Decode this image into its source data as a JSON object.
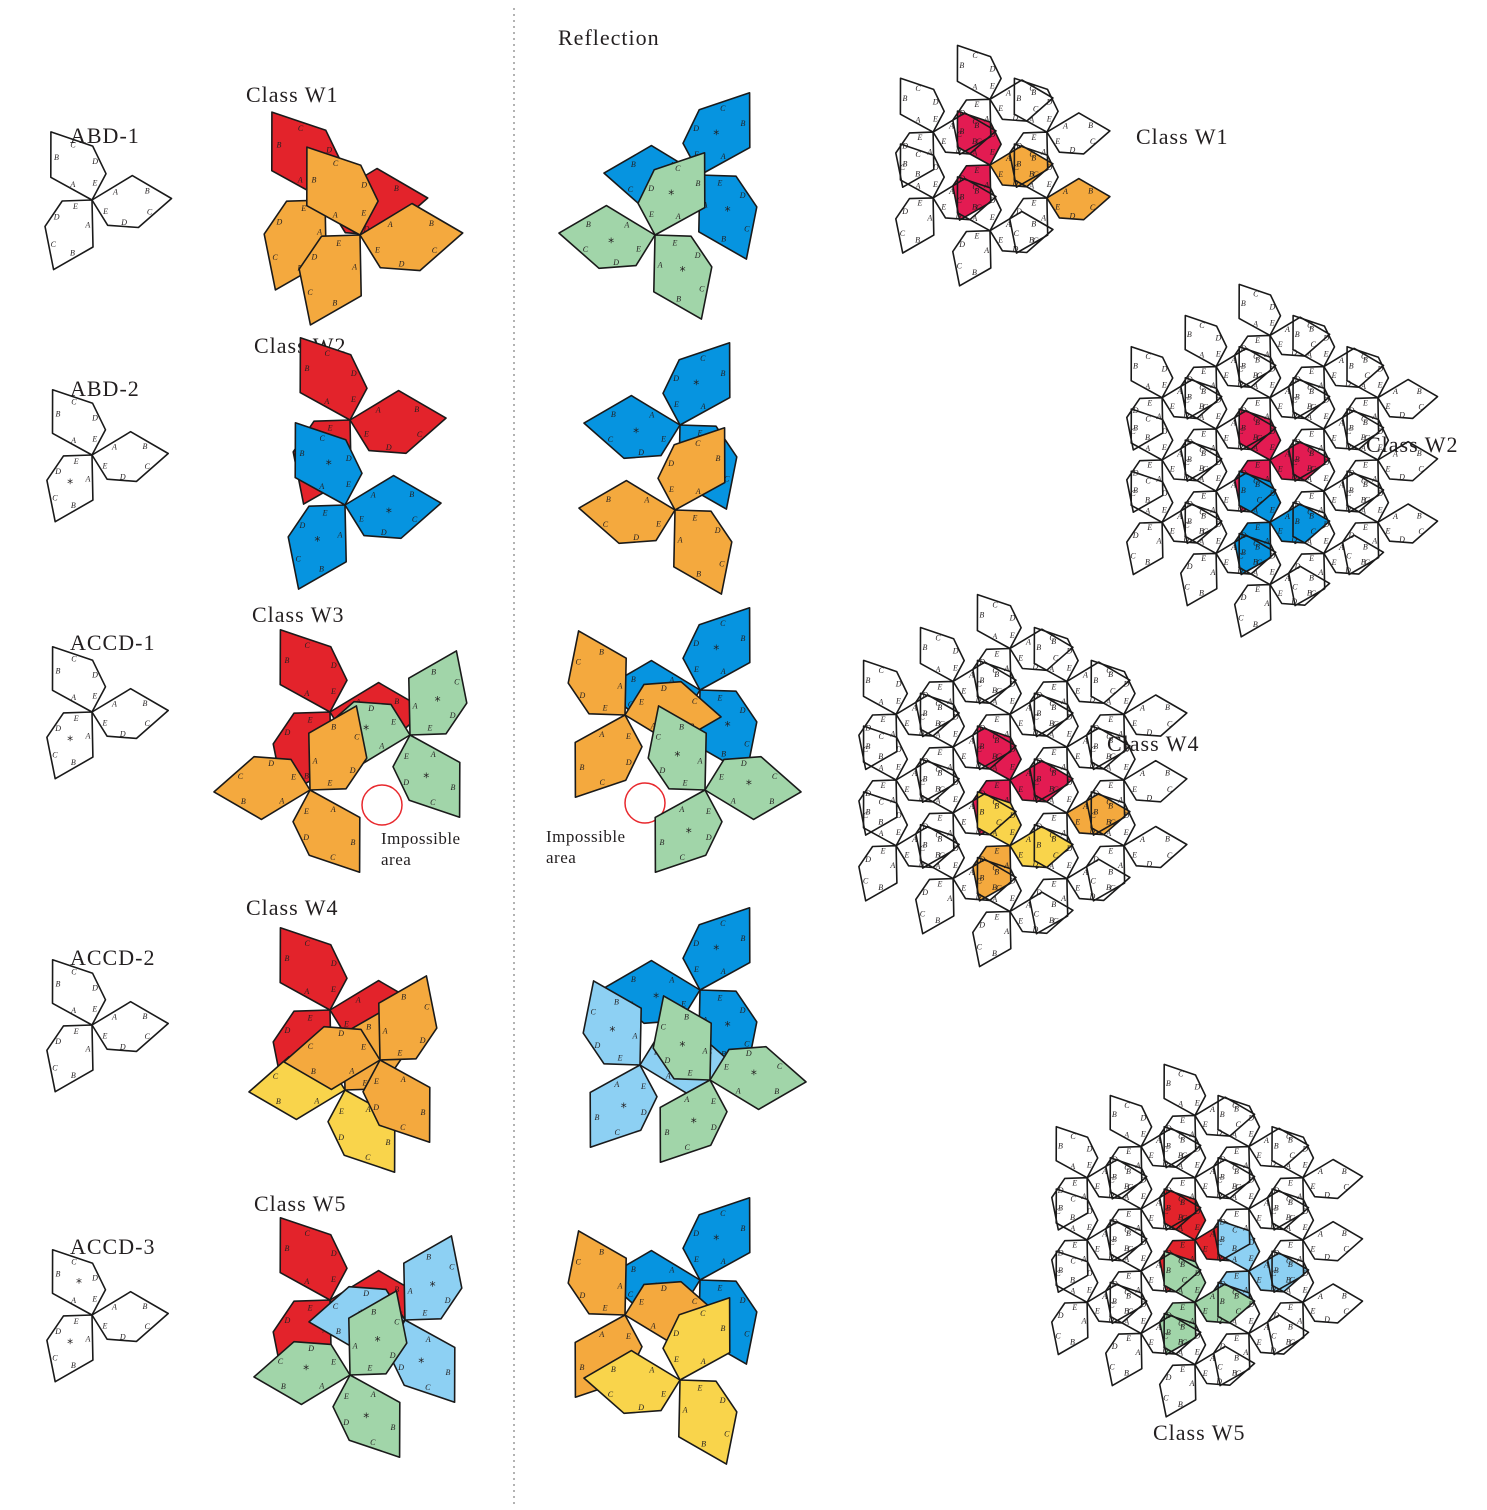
{
  "header": {
    "reflection_label": "Reflection"
  },
  "rows": [
    {
      "proto": "ABD-1",
      "cls": "Class W1"
    },
    {
      "proto": "ABD-2",
      "cls": "Class W2"
    },
    {
      "proto": "ACCD-1",
      "cls": "Class W3"
    },
    {
      "proto": "ACCD-2",
      "cls": "Class W4"
    },
    {
      "proto": "ACCD-3",
      "cls": "Class W5"
    }
  ],
  "impossible": {
    "line1": "Impossible",
    "line2": "area"
  },
  "patches": {
    "w1": "Class W1",
    "w2": "Class W2",
    "w4": "Class W4",
    "w5": "Class W5"
  },
  "edge_letters": [
    "A",
    "B",
    "C",
    "D",
    "E"
  ],
  "star_mark": "*",
  "colors": {
    "red": "#e3232b",
    "crimson": "#e31b52",
    "orange": "#f4a93e",
    "blue": "#0694e0",
    "light_blue": "#8dd0f3",
    "green": "#a1d5a9",
    "yellow": "#f9d44b",
    "outline": "#1a1a1a",
    "divider": "#9a9a9a",
    "impossible_circle": "#e8282d"
  }
}
